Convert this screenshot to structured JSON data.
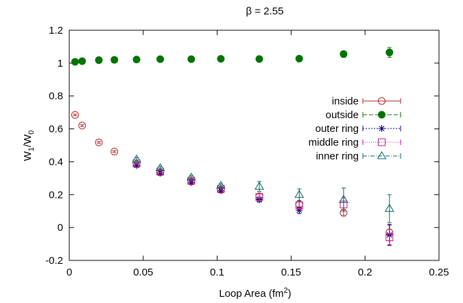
{
  "chart_data": {
    "type": "scatter",
    "title": "β = 2.55",
    "xlabel": {
      "text": "Loop Area (fm",
      "sup": "2",
      "tail": ")"
    },
    "ylabel": {
      "main": "W",
      "sub1": "1",
      "mid": "/W",
      "sub2": "0"
    },
    "xlim": [
      0,
      0.25
    ],
    "ylim": [
      -0.2,
      1.2
    ],
    "xticks": [
      0,
      0.05,
      0.1,
      0.15,
      0.2,
      0.25
    ],
    "xtick_labels": [
      "0",
      "0.05",
      "0.1",
      "0.15",
      "0.2",
      "0.25"
    ],
    "yticks": [
      -0.2,
      0,
      0.2,
      0.4,
      0.6,
      0.8,
      1,
      1.2
    ],
    "ytick_labels": [
      "-0.2",
      "0",
      "0.2",
      "0.4",
      "0.6",
      "0.8",
      "1",
      "1.2"
    ],
    "grid": false,
    "legend_position": "right",
    "series": [
      {
        "name": "inside",
        "marker": "open-circle",
        "color": "#b22222",
        "dash": "solid",
        "points": [
          {
            "x": 0.0039,
            "y": 0.685,
            "err": 0.005
          },
          {
            "x": 0.0087,
            "y": 0.62,
            "err": 0.005
          },
          {
            "x": 0.02,
            "y": 0.518,
            "err": 0.005
          },
          {
            "x": 0.0305,
            "y": 0.462,
            "err": 0.005
          },
          {
            "x": 0.0455,
            "y": 0.385,
            "err": 0.008
          },
          {
            "x": 0.0615,
            "y": 0.335,
            "err": 0.008
          },
          {
            "x": 0.0825,
            "y": 0.28,
            "err": 0.008
          },
          {
            "x": 0.1025,
            "y": 0.23,
            "err": 0.008
          },
          {
            "x": 0.1285,
            "y": 0.19,
            "err": 0.015
          },
          {
            "x": 0.1555,
            "y": 0.14,
            "err": 0.02
          },
          {
            "x": 0.1855,
            "y": 0.09,
            "err": 0.02
          },
          {
            "x": 0.2165,
            "y": -0.03,
            "err": 0.05
          }
        ]
      },
      {
        "name": "outside",
        "marker": "filled-circle",
        "color": "#007400",
        "dash": "6,3",
        "points": [
          {
            "x": 0.0039,
            "y": 1.008,
            "err": 0.005
          },
          {
            "x": 0.0087,
            "y": 1.012,
            "err": 0.005
          },
          {
            "x": 0.02,
            "y": 1.018,
            "err": 0.005
          },
          {
            "x": 0.0305,
            "y": 1.02,
            "err": 0.005
          },
          {
            "x": 0.0455,
            "y": 1.022,
            "err": 0.005
          },
          {
            "x": 0.0615,
            "y": 1.024,
            "err": 0.005
          },
          {
            "x": 0.0825,
            "y": 1.024,
            "err": 0.005
          },
          {
            "x": 0.1025,
            "y": 1.026,
            "err": 0.005
          },
          {
            "x": 0.1285,
            "y": 1.025,
            "err": 0.006
          },
          {
            "x": 0.1555,
            "y": 1.027,
            "err": 0.008
          },
          {
            "x": 0.1855,
            "y": 1.055,
            "err": 0.02
          },
          {
            "x": 0.2165,
            "y": 1.065,
            "err": 0.03
          }
        ]
      },
      {
        "name": "outer ring",
        "marker": "asterisk",
        "color": "#000080",
        "dash": "2,2",
        "points": [
          {
            "x": 0.0455,
            "y": 0.378,
            "err": 0.008
          },
          {
            "x": 0.0615,
            "y": 0.332,
            "err": 0.008
          },
          {
            "x": 0.0825,
            "y": 0.275,
            "err": 0.008
          },
          {
            "x": 0.1025,
            "y": 0.225,
            "err": 0.008
          },
          {
            "x": 0.1285,
            "y": 0.17,
            "err": 0.015
          },
          {
            "x": 0.1555,
            "y": 0.105,
            "err": 0.02
          },
          {
            "x": 0.2165,
            "y": -0.045,
            "err": 0.06
          }
        ]
      },
      {
        "name": "middle ring",
        "marker": "open-square",
        "color": "#c71585",
        "dash": "1,2",
        "points": [
          {
            "x": 0.0455,
            "y": 0.39,
            "err": 0.008
          },
          {
            "x": 0.0615,
            "y": 0.34,
            "err": 0.008
          },
          {
            "x": 0.0825,
            "y": 0.285,
            "err": 0.008
          },
          {
            "x": 0.1025,
            "y": 0.235,
            "err": 0.008
          },
          {
            "x": 0.1285,
            "y": 0.185,
            "err": 0.02
          },
          {
            "x": 0.1555,
            "y": 0.135,
            "err": 0.025
          },
          {
            "x": 0.1855,
            "y": 0.14,
            "err": 0.04
          },
          {
            "x": 0.2165,
            "y": -0.06,
            "err": 0.05
          }
        ]
      },
      {
        "name": "inner ring",
        "marker": "open-triangle",
        "color": "#006060",
        "dash": "6,2,1,2",
        "points": [
          {
            "x": 0.0455,
            "y": 0.415,
            "err": 0.01
          },
          {
            "x": 0.0615,
            "y": 0.362,
            "err": 0.01
          },
          {
            "x": 0.0825,
            "y": 0.305,
            "err": 0.01
          },
          {
            "x": 0.1025,
            "y": 0.255,
            "err": 0.01
          },
          {
            "x": 0.1285,
            "y": 0.25,
            "err": 0.03
          },
          {
            "x": 0.1555,
            "y": 0.2,
            "err": 0.035
          },
          {
            "x": 0.1855,
            "y": 0.17,
            "err": 0.07
          },
          {
            "x": 0.2165,
            "y": 0.115,
            "err": 0.085
          }
        ]
      }
    ]
  }
}
